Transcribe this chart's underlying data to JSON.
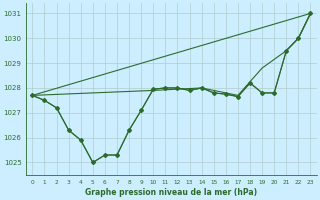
{
  "title": "Graphe pression niveau de la mer (hPa)",
  "bg_color": "#cceeff",
  "grid_color": "#b0cccc",
  "line_color": "#2d6b2d",
  "xlim": [
    -0.5,
    23.5
  ],
  "ylim": [
    1024.5,
    1031.4
  ],
  "yticks": [
    1025,
    1026,
    1027,
    1028,
    1029,
    1030,
    1031
  ],
  "xticks": [
    0,
    1,
    2,
    3,
    4,
    5,
    6,
    7,
    8,
    9,
    10,
    11,
    12,
    13,
    14,
    15,
    16,
    17,
    18,
    19,
    20,
    21,
    22,
    23
  ],
  "line1_x": [
    0,
    1,
    2,
    3,
    4,
    5,
    6,
    7,
    8,
    9,
    10,
    11,
    12,
    13,
    14,
    15,
    16,
    17,
    18,
    19,
    20,
    21,
    22,
    23
  ],
  "line1_y": [
    1027.7,
    1027.5,
    1027.2,
    1026.3,
    1025.9,
    1025.0,
    1025.3,
    1025.3,
    1026.3,
    1027.1,
    1027.95,
    1028.0,
    1028.0,
    1027.9,
    1028.0,
    1027.8,
    1027.75,
    1027.65,
    1028.2,
    1027.8,
    1027.8,
    1029.5,
    1030.0,
    1031.0
  ],
  "line2_x": [
    0,
    1,
    2,
    3,
    4,
    5,
    6,
    7,
    8,
    9,
    10,
    11,
    12,
    13,
    14,
    15,
    16,
    17,
    18,
    19,
    20,
    21,
    22,
    23
  ],
  "line2_y": [
    1027.7,
    1027.5,
    1027.2,
    1026.3,
    1025.9,
    1025.0,
    1025.3,
    1025.3,
    1026.3,
    1027.1,
    1027.95,
    1028.0,
    1028.0,
    1027.9,
    1028.0,
    1027.8,
    1027.75,
    1027.65,
    1028.2,
    1027.8,
    1027.8,
    1029.5,
    1030.0,
    1031.0
  ],
  "line3_x": [
    0,
    23
  ],
  "line3_y": [
    1027.7,
    1031.0
  ],
  "line4_x": [
    0,
    10,
    14,
    17,
    19,
    21,
    22,
    23
  ],
  "line4_y": [
    1027.7,
    1027.9,
    1028.0,
    1027.7,
    1028.8,
    1029.5,
    1030.0,
    1031.0
  ]
}
